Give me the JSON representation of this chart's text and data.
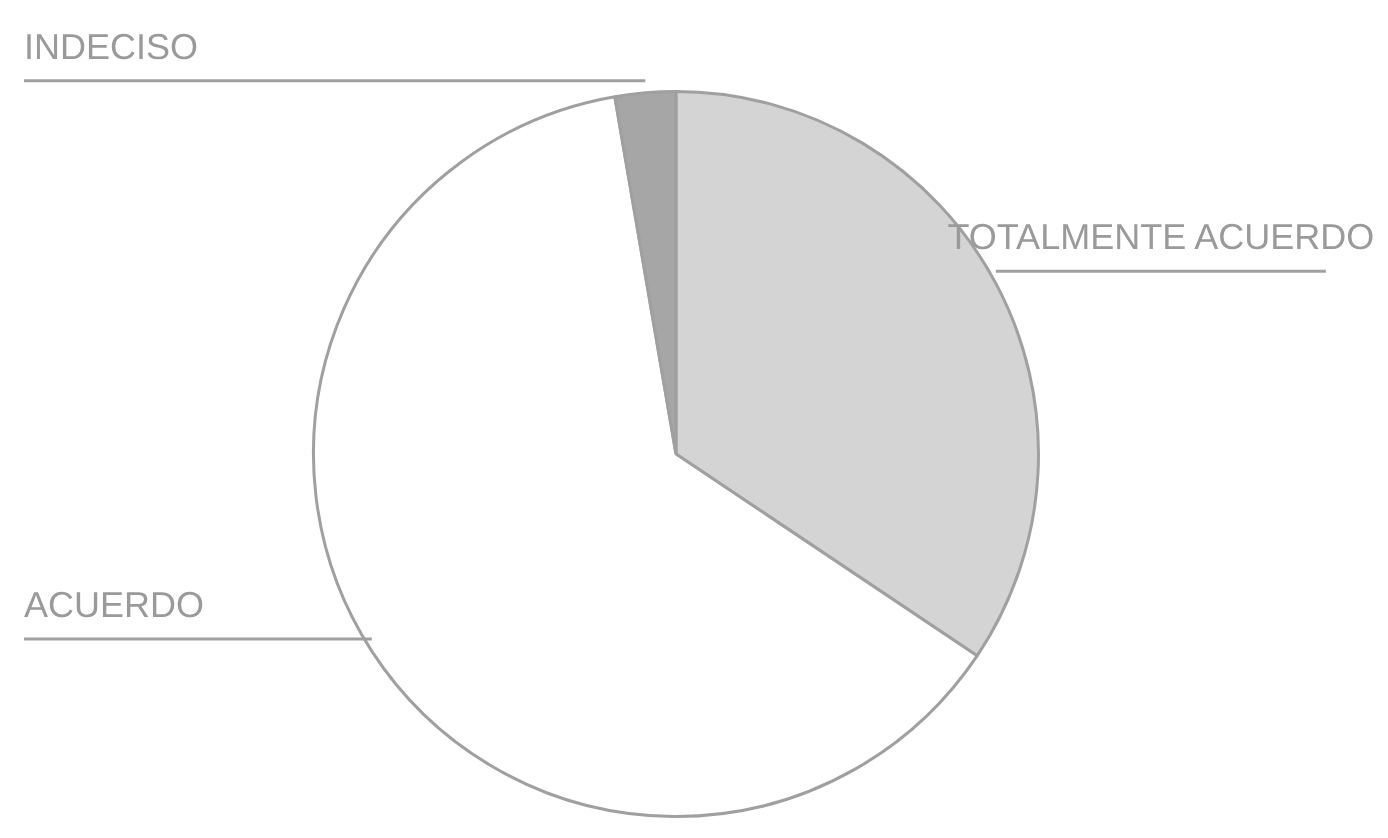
{
  "chart_data": {
    "type": "pie",
    "categories": [
      "TOTALMENTE ACUERDO",
      "ACUERDO",
      "INDECISO"
    ],
    "values": [
      34.4,
      62.9,
      2.7
    ],
    "colors": [
      "#d4d4d4",
      "#ffffff",
      "#a6a6a6"
    ],
    "legend": false
  }
}
